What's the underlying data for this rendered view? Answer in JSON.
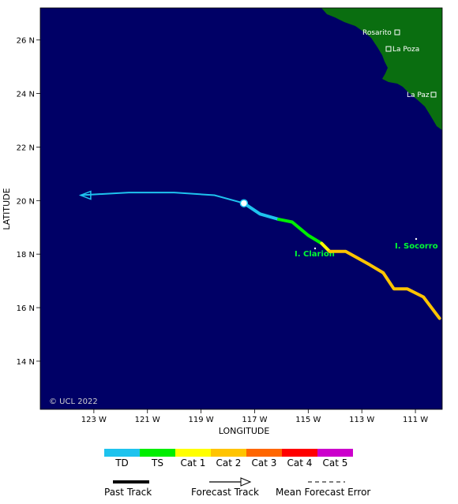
{
  "map": {
    "copyright": "© UCL 2022",
    "x_axis_title": "LONGITUDE",
    "y_axis_title": "LATITUDE",
    "lon_ticks": [
      "123 W",
      "121 W",
      "119 W",
      "117 W",
      "115 W",
      "113 W",
      "111 W"
    ],
    "lat_ticks": [
      "26 N",
      "24 N",
      "22 N",
      "20 N",
      "18 N",
      "16 N",
      "14 N"
    ],
    "places": [
      "Rosarito",
      "La Poza",
      "La Paz"
    ],
    "islands": [
      "I. Clarion",
      "I. Socorro"
    ],
    "colors": {
      "ocean": "#000066",
      "land": "#0a6e10",
      "text": "#ffffff"
    }
  },
  "storm_track": {
    "forecast": {
      "color": "#1ec3ee",
      "points": [
        [
          -117.4,
          19.9
        ],
        [
          -118.5,
          20.2
        ],
        [
          -120.0,
          20.3
        ],
        [
          -121.7,
          20.3
        ],
        [
          -123.5,
          20.2
        ]
      ]
    },
    "past": [
      {
        "category": "TD",
        "points": [
          [
            -117.4,
            19.9
          ],
          [
            -116.8,
            19.5
          ],
          [
            -116.1,
            19.3
          ]
        ]
      },
      {
        "category": "TS",
        "points": [
          [
            -116.1,
            19.3
          ],
          [
            -115.6,
            19.2
          ],
          [
            -115.0,
            18.7
          ],
          [
            -114.5,
            18.4
          ]
        ]
      },
      {
        "category": "Cat 1",
        "points": [
          [
            -114.5,
            18.4
          ],
          [
            -114.2,
            18.1
          ]
        ]
      },
      {
        "category": "Cat 2",
        "points": [
          [
            -114.2,
            18.1
          ],
          [
            -113.6,
            18.1
          ],
          [
            -112.7,
            17.6
          ],
          [
            -112.2,
            17.3
          ],
          [
            -111.8,
            16.7
          ],
          [
            -111.3,
            16.7
          ],
          [
            -110.7,
            16.4
          ],
          [
            -110.1,
            15.6
          ]
        ]
      }
    ],
    "current_position": [
      -117.4,
      19.9
    ]
  },
  "legend": {
    "categories": [
      {
        "label": "TD",
        "color": "#1ec3ee"
      },
      {
        "label": "TS",
        "color": "#00ee00"
      },
      {
        "label": "Cat 1",
        "color": "#ffff00"
      },
      {
        "label": "Cat 2",
        "color": "#ffc400"
      },
      {
        "label": "Cat 3",
        "color": "#ff6600"
      },
      {
        "label": "Cat 4",
        "color": "#ff0000"
      },
      {
        "label": "Cat 5",
        "color": "#cc00cc"
      }
    ],
    "past_track": "Past Track",
    "forecast_track": "Forecast Track",
    "mean_forecast_error": "Mean Forecast Error"
  }
}
